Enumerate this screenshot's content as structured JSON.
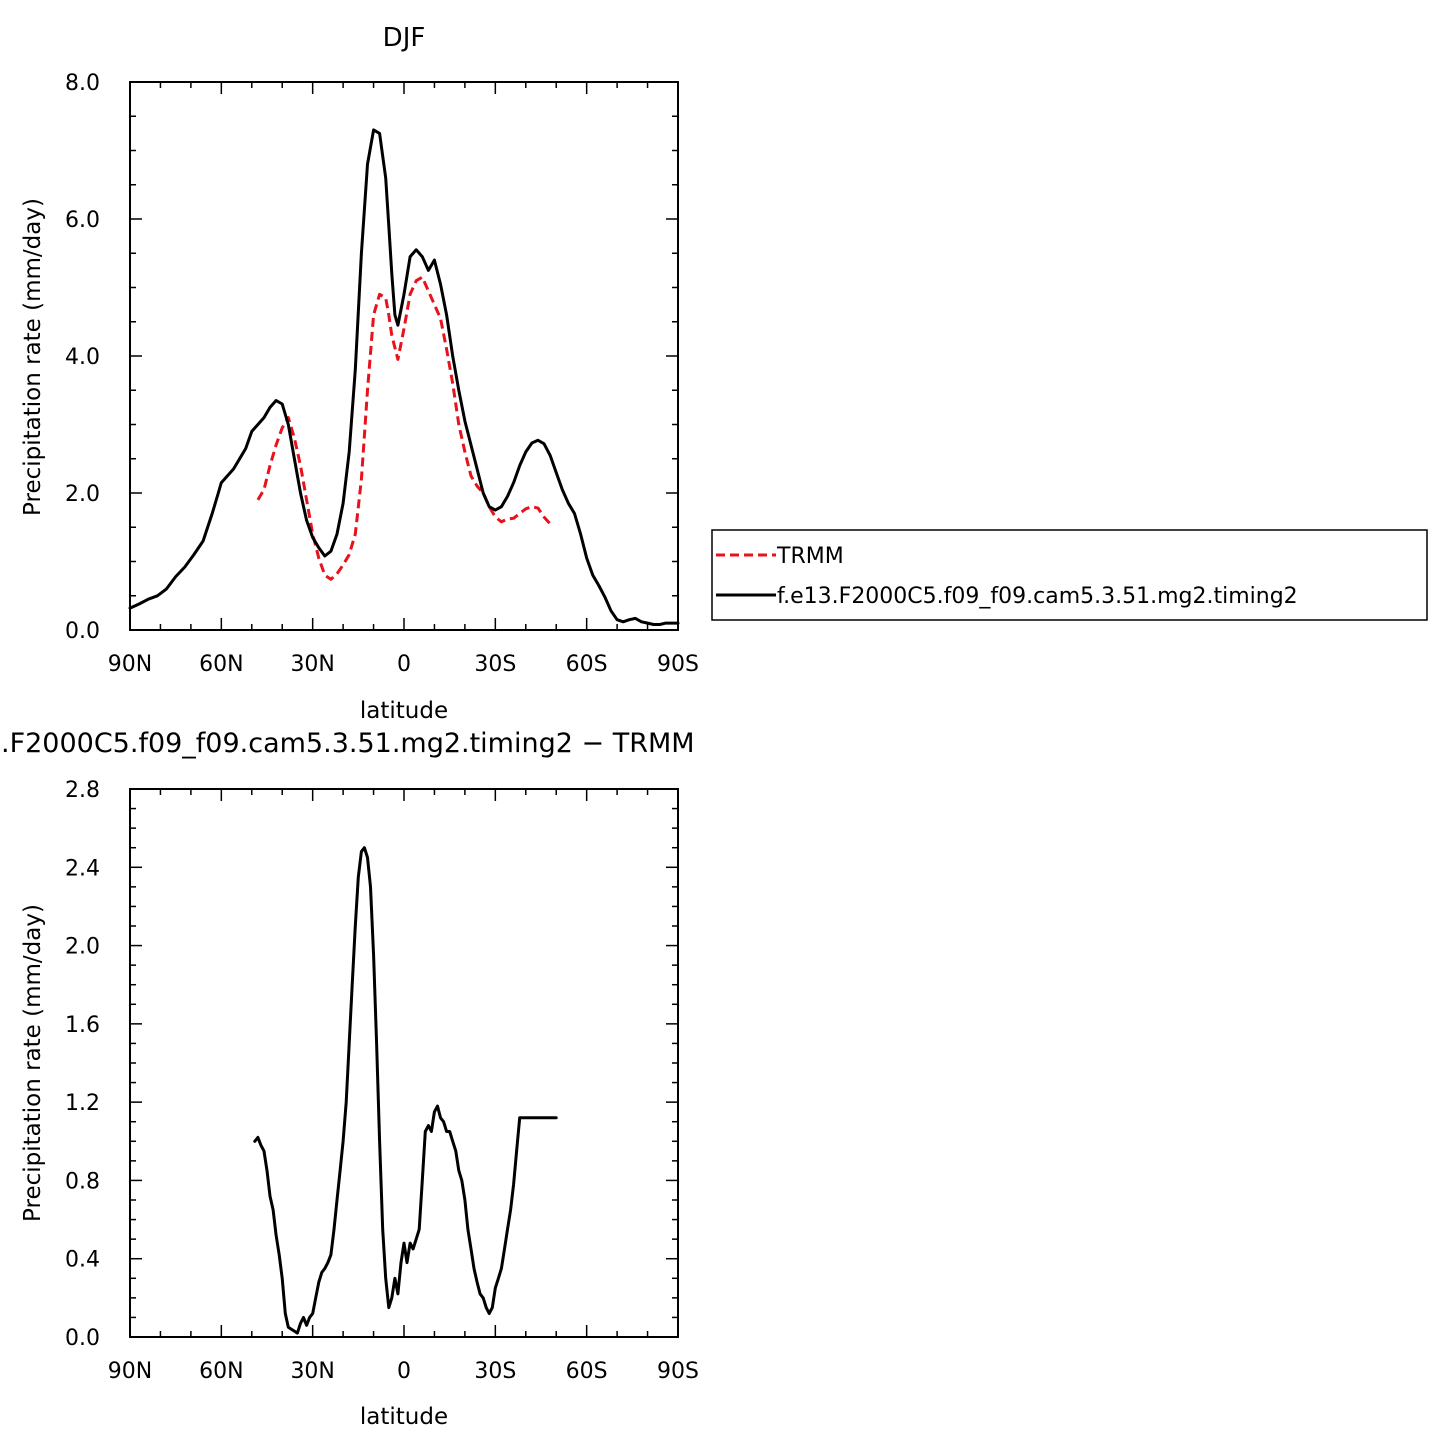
{
  "chart_data": [
    {
      "type": "line",
      "title": "DJF",
      "xlabel": "latitude",
      "ylabel": "Precipitation rate (mm/day)",
      "xlim": [
        -90,
        90
      ],
      "ylim": [
        0,
        8
      ],
      "x_ticks": [
        -90,
        -60,
        -30,
        0,
        30,
        60,
        90
      ],
      "x_tick_labels": [
        "90N",
        "60N",
        "30N",
        "0",
        "30S",
        "60S",
        "90S"
      ],
      "y_ticks": [
        0,
        2,
        4,
        6,
        8
      ],
      "y_tick_labels": [
        "0.0",
        "2.0",
        "4.0",
        "6.0",
        "8.0"
      ],
      "grid": false,
      "legend_position": "right",
      "series": [
        {
          "name": "TRMM",
          "color": "#e8121c",
          "dash": "dashed",
          "x": [
            -48,
            -46,
            -44,
            -42,
            -40,
            -38,
            -36,
            -34,
            -32,
            -30,
            -28,
            -26,
            -24,
            -22,
            -20,
            -18,
            -16,
            -14,
            -12,
            -10,
            -8,
            -6,
            -5,
            -4,
            -2,
            0,
            2,
            4,
            6,
            8,
            10,
            12,
            14,
            16,
            18,
            20,
            22,
            24,
            26,
            28,
            30,
            32,
            34,
            36,
            38,
            40,
            42,
            44,
            46,
            48
          ],
          "y": [
            1.9,
            2.05,
            2.4,
            2.7,
            2.95,
            3.1,
            2.8,
            2.4,
            1.9,
            1.4,
            1.05,
            0.8,
            0.74,
            0.82,
            0.95,
            1.1,
            1.4,
            2.2,
            3.5,
            4.6,
            4.9,
            4.85,
            4.6,
            4.3,
            3.95,
            4.4,
            4.9,
            5.1,
            5.15,
            4.95,
            4.75,
            4.55,
            4.1,
            3.6,
            3.0,
            2.6,
            2.25,
            2.1,
            2.0,
            1.8,
            1.65,
            1.58,
            1.62,
            1.63,
            1.7,
            1.77,
            1.8,
            1.78,
            1.65,
            1.55
          ]
        },
        {
          "name": "f.e13.F2000C5.f09_f09.cam5.3.51.mg2.timing2",
          "color": "#000000",
          "dash": "solid",
          "x": [
            -90,
            -87,
            -84,
            -81,
            -78,
            -75,
            -72,
            -69,
            -66,
            -63,
            -61,
            -60,
            -58,
            -56,
            -54,
            -52,
            -50,
            -48,
            -46,
            -44,
            -42,
            -40,
            -38,
            -36,
            -34,
            -32,
            -30,
            -28,
            -26,
            -24,
            -22,
            -20,
            -18,
            -16,
            -14,
            -12,
            -10,
            -8,
            -6,
            -5,
            -4,
            -3,
            -2,
            0,
            2,
            4,
            6,
            8,
            10,
            12,
            14,
            16,
            18,
            20,
            22,
            24,
            26,
            28,
            30,
            32,
            34,
            36,
            38,
            40,
            42,
            44,
            46,
            48,
            50,
            52,
            54,
            56,
            58,
            60,
            62,
            64,
            66,
            68,
            70,
            72,
            74,
            76,
            78,
            80,
            82,
            84,
            86,
            88,
            90
          ],
          "y": [
            0.32,
            0.38,
            0.45,
            0.5,
            0.6,
            0.78,
            0.92,
            1.1,
            1.3,
            1.7,
            2.0,
            2.15,
            2.25,
            2.35,
            2.5,
            2.65,
            2.9,
            3.0,
            3.1,
            3.25,
            3.35,
            3.3,
            3.0,
            2.5,
            2.0,
            1.6,
            1.35,
            1.2,
            1.08,
            1.15,
            1.4,
            1.85,
            2.6,
            3.8,
            5.5,
            6.8,
            7.3,
            7.25,
            6.6,
            5.9,
            5.2,
            4.6,
            4.45,
            4.9,
            5.45,
            5.55,
            5.45,
            5.25,
            5.4,
            5.05,
            4.6,
            4.0,
            3.5,
            3.05,
            2.7,
            2.35,
            2.0,
            1.8,
            1.75,
            1.8,
            1.95,
            2.15,
            2.4,
            2.6,
            2.73,
            2.77,
            2.72,
            2.55,
            2.3,
            2.05,
            1.85,
            1.7,
            1.4,
            1.05,
            0.8,
            0.65,
            0.48,
            0.28,
            0.15,
            0.12,
            0.15,
            0.17,
            0.12,
            0.1,
            0.08,
            0.08,
            0.1,
            0.1,
            0.1
          ]
        }
      ]
    },
    {
      "type": "line",
      "title": ".F2000C5.f09_f09.cam5.3.51.mg2.timing2 − TRMM",
      "xlabel": "latitude",
      "ylabel": "Precipitation rate (mm/day)",
      "xlim": [
        -90,
        90
      ],
      "ylim": [
        0,
        2.8
      ],
      "x_ticks": [
        -90,
        -60,
        -30,
        0,
        30,
        60,
        90
      ],
      "x_tick_labels": [
        "90N",
        "60N",
        "30N",
        "0",
        "30S",
        "60S",
        "90S"
      ],
      "y_ticks": [
        0,
        0.4,
        0.8,
        1.2,
        1.6,
        2.0,
        2.4,
        2.8
      ],
      "y_tick_labels": [
        "0.0",
        "0.4",
        "0.8",
        "1.2",
        "1.6",
        "2.0",
        "2.4",
        "2.8"
      ],
      "grid": false,
      "series": [
        {
          "color": "#000000",
          "dash": "solid",
          "x": [
            -49,
            -48,
            -47,
            -46,
            -45,
            -44,
            -43,
            -42,
            -41,
            -40,
            -39,
            -38,
            -37,
            -36,
            -35,
            -34,
            -33,
            -32,
            -31,
            -30,
            -29,
            -28,
            -27,
            -26,
            -25,
            -24,
            -23,
            -22,
            -21,
            -20,
            -19,
            -18,
            -17,
            -16,
            -15,
            -14,
            -13,
            -12,
            -11,
            -10,
            -9,
            -8,
            -7,
            -6,
            -5,
            -4,
            -3,
            -2,
            -1,
            0,
            1,
            2,
            3,
            4,
            5,
            6,
            7,
            8,
            9,
            10,
            11,
            12,
            13,
            14,
            15,
            16,
            17,
            18,
            19,
            20,
            21,
            22,
            23,
            24,
            25,
            26,
            27,
            28,
            29,
            30,
            31,
            32,
            33,
            34,
            35,
            36,
            37,
            38,
            39,
            40,
            41,
            42,
            43,
            44,
            45,
            46,
            47,
            48,
            49,
            50
          ],
          "y": [
            1.0,
            1.02,
            0.98,
            0.95,
            0.85,
            0.72,
            0.65,
            0.52,
            0.42,
            0.3,
            0.12,
            0.05,
            0.04,
            0.03,
            0.02,
            0.07,
            0.1,
            0.06,
            0.1,
            0.12,
            0.2,
            0.28,
            0.33,
            0.35,
            0.38,
            0.42,
            0.55,
            0.7,
            0.85,
            1.0,
            1.2,
            1.5,
            1.8,
            2.1,
            2.35,
            2.48,
            2.5,
            2.45,
            2.3,
            1.95,
            1.5,
            1.0,
            0.55,
            0.3,
            0.15,
            0.2,
            0.3,
            0.22,
            0.38,
            0.48,
            0.38,
            0.48,
            0.45,
            0.5,
            0.55,
            0.8,
            1.05,
            1.08,
            1.05,
            1.15,
            1.18,
            1.12,
            1.1,
            1.05,
            1.05,
            1.0,
            0.95,
            0.85,
            0.8,
            0.7,
            0.55,
            0.45,
            0.35,
            0.28,
            0.22,
            0.2,
            0.15,
            0.12,
            0.15,
            0.25,
            0.3,
            0.35,
            0.45,
            0.55,
            0.65,
            0.78,
            0.95,
            1.12,
            1.12,
            1.12,
            1.12,
            1.12,
            1.12,
            1.12,
            1.12,
            1.12,
            1.12,
            1.12,
            1.12,
            1.12
          ]
        }
      ]
    }
  ]
}
